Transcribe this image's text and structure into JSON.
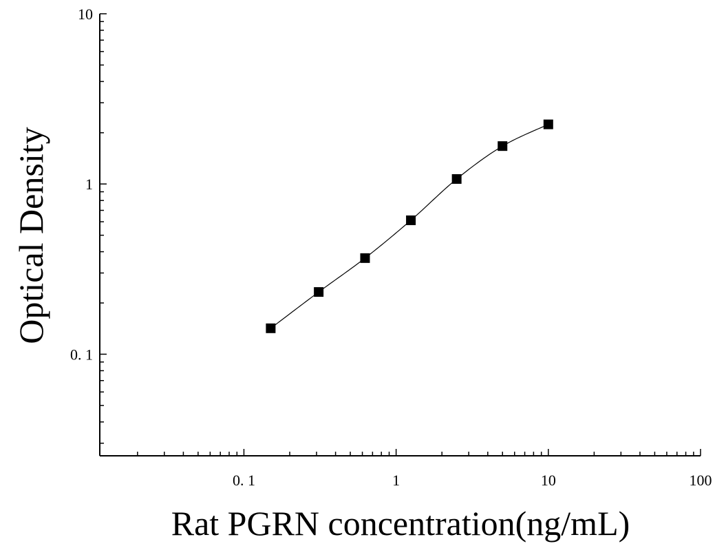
{
  "chart_data": {
    "type": "scatter",
    "title": "",
    "xlabel": "Rat PGRN concentration(ng/mL)",
    "ylabel": "Optical Density",
    "x_scale": "log",
    "y_scale": "log",
    "xlim": [
      0.0113,
      100
    ],
    "ylim": [
      0.0253,
      10
    ],
    "x_tick_labels": [
      {
        "value": 0.1,
        "label": "0. 1"
      },
      {
        "value": 1,
        "label": "1"
      },
      {
        "value": 10,
        "label": "10"
      },
      {
        "value": 100,
        "label": "100"
      }
    ],
    "y_tick_labels": [
      {
        "value": 0.1,
        "label": "0. 1"
      },
      {
        "value": 1,
        "label": "1"
      },
      {
        "value": 10,
        "label": "10"
      }
    ],
    "grid": false,
    "legend": "none",
    "series": [
      {
        "marker": "square",
        "color": "#000000",
        "x": [
          0.15,
          0.31,
          0.625,
          1.25,
          2.5,
          5,
          10
        ],
        "y": [
          0.142,
          0.232,
          0.367,
          0.612,
          1.07,
          1.67,
          2.24
        ]
      }
    ],
    "fit_curve": {
      "style": "smooth",
      "color": "#000000"
    }
  }
}
